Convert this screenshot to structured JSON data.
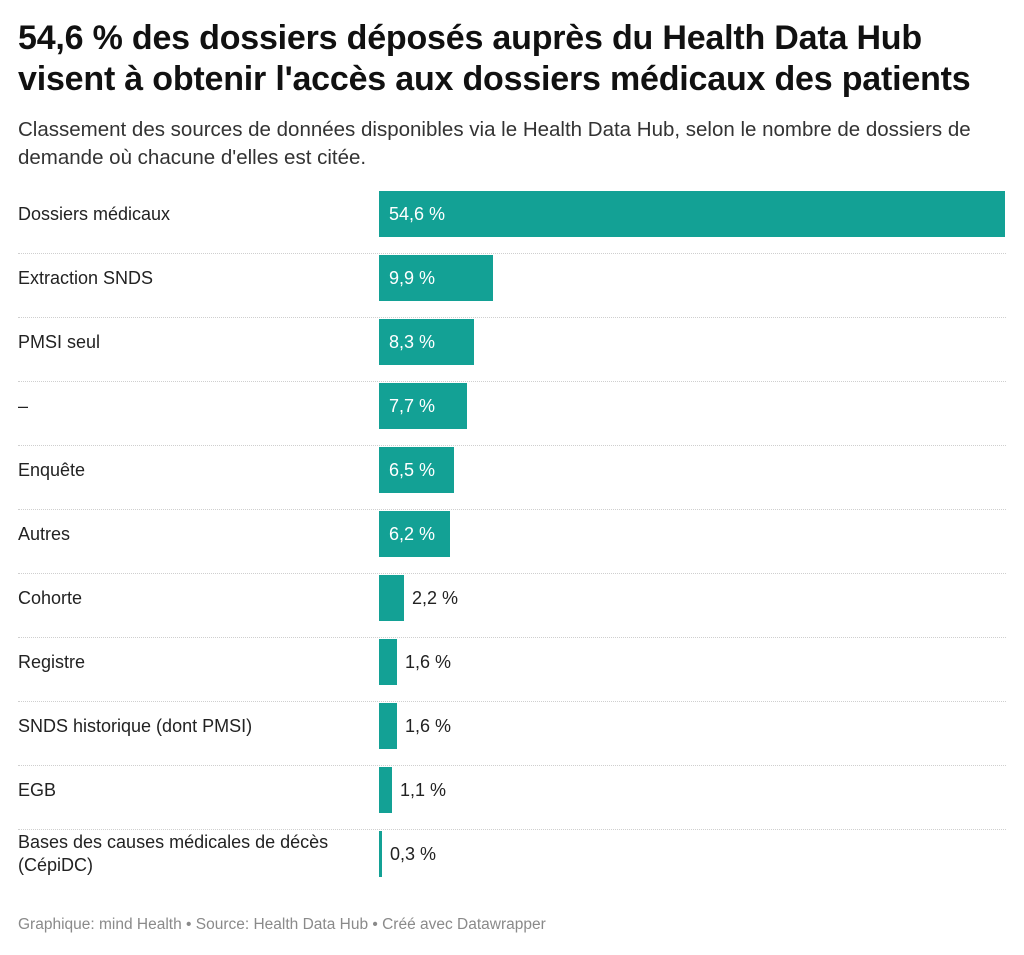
{
  "title": "54,6 % des dossiers déposés auprès du Health Data Hub visent à obtenir l'accès aux dossiers médicaux des patients",
  "subtitle": "Classement des sources de données disponibles via le Health Data Hub, selon le nombre de dossiers de demande où chacune d'elles est citée.",
  "footer": "Graphique: mind Health • Source: Health Data Hub • Créé avec Datawrapper",
  "colors": {
    "bar": "#13a195"
  },
  "chart_data": {
    "type": "bar",
    "orientation": "horizontal",
    "categories": [
      "Dossiers médicaux",
      "Extraction SNDS",
      "PMSI seul",
      "–",
      "Enquête",
      "Autres",
      "Cohorte",
      "Registre",
      "SNDS historique (dont PMSI)",
      "EGB",
      "Bases des causes médicales de décès (CépiDC)"
    ],
    "values": [
      54.6,
      9.9,
      8.3,
      7.7,
      6.5,
      6.2,
      2.2,
      1.6,
      1.6,
      1.1,
      0.3
    ],
    "value_labels": [
      "54,6 %",
      "9,9 %",
      "8,3 %",
      "7,7 %",
      "6,5 %",
      "6,2 %",
      "2,2 %",
      "1,6 %",
      "1,6 %",
      "1,1 %",
      "0,3 %"
    ],
    "xlim": [
      0,
      54.6
    ],
    "grid": false
  }
}
